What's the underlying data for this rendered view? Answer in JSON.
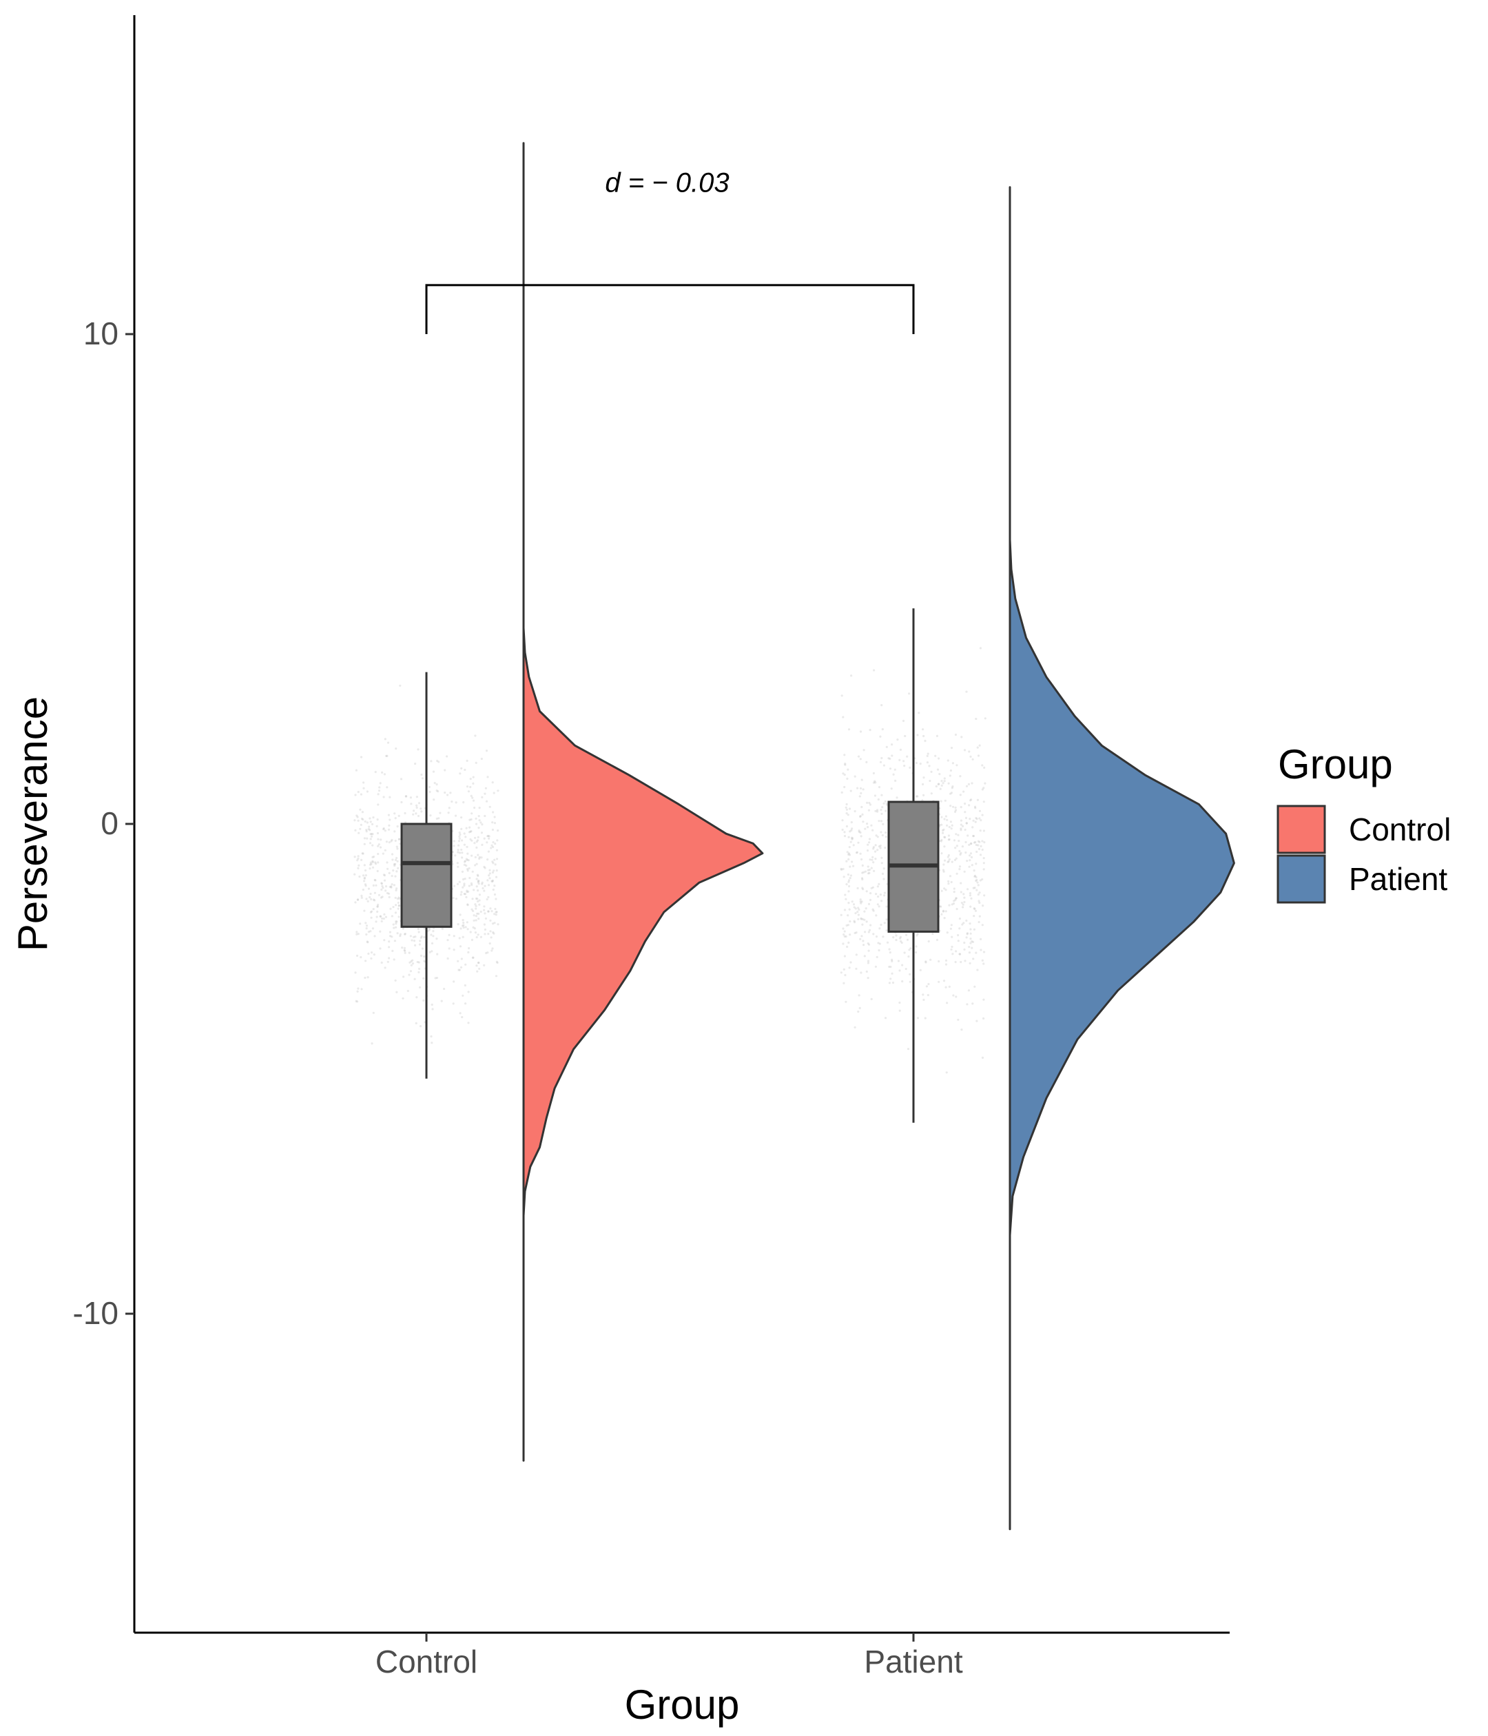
{
  "chart_data": {
    "type": "raincloud",
    "xlabel": "Group",
    "ylabel": "Perseverance",
    "categories": [
      "Control",
      "Patient"
    ],
    "yticks": [
      {
        "value": 10,
        "label": "10"
      },
      {
        "value": 0,
        "label": "0"
      },
      {
        "value": -10,
        "label": "-10"
      }
    ],
    "ylim": [
      -16.5,
      16.5
    ],
    "grid": false,
    "legend": {
      "title": "Group",
      "position": "right",
      "entries": [
        {
          "label": "Control",
          "color": "#F8766D"
        },
        {
          "label": "Patient",
          "color": "#5B84B1"
        }
      ]
    },
    "annotation": {
      "text": "d = − 0.03",
      "bracket_y": 11,
      "bracket_drop_y": 10,
      "label_y": 13.1
    },
    "series": [
      {
        "name": "Control",
        "color": "#F8766D",
        "box": {
          "q1": -2.1,
          "median": -0.8,
          "q3": 0.0,
          "whisker_low": -5.2,
          "whisker_high": 3.1
        },
        "half_violin": {
          "range": [
            -13.0,
            13.9
          ],
          "density": [
            [
              -13.0,
              0.0
            ],
            [
              -8.0,
              0.0
            ],
            [
              -7.5,
              0.01
            ],
            [
              -7.0,
              0.05
            ],
            [
              -6.6,
              0.12
            ],
            [
              -6.0,
              0.17
            ],
            [
              -5.4,
              0.23
            ],
            [
              -4.6,
              0.37
            ],
            [
              -3.8,
              0.6
            ],
            [
              -3.0,
              0.79
            ],
            [
              -2.4,
              0.9
            ],
            [
              -1.8,
              1.04
            ],
            [
              -1.2,
              1.3
            ],
            [
              -0.8,
              1.63
            ],
            [
              -0.6,
              1.77
            ],
            [
              -0.4,
              1.7
            ],
            [
              -0.2,
              1.5
            ],
            [
              0.4,
              1.15
            ],
            [
              1.0,
              0.78
            ],
            [
              1.6,
              0.38
            ],
            [
              2.3,
              0.12
            ],
            [
              3.0,
              0.04
            ],
            [
              3.5,
              0.01
            ],
            [
              4.0,
              0.0
            ],
            [
              13.9,
              0.0
            ]
          ]
        }
      },
      {
        "name": "Patient",
        "color": "#5B84B1",
        "box": {
          "q1": -2.2,
          "median": -0.85,
          "q3": 0.45,
          "whisker_low": -6.1,
          "whisker_high": 4.4
        },
        "half_violin": {
          "range": [
            -14.4,
            13.0
          ],
          "density": [
            [
              -14.4,
              0.0
            ],
            [
              -8.4,
              0.0
            ],
            [
              -7.6,
              0.02
            ],
            [
              -6.8,
              0.1
            ],
            [
              -5.6,
              0.27
            ],
            [
              -4.4,
              0.5
            ],
            [
              -3.4,
              0.8
            ],
            [
              -2.6,
              1.12
            ],
            [
              -2.0,
              1.36
            ],
            [
              -1.4,
              1.56
            ],
            [
              -0.8,
              1.66
            ],
            [
              -0.2,
              1.6
            ],
            [
              0.4,
              1.4
            ],
            [
              1.0,
              1.0
            ],
            [
              1.6,
              0.68
            ],
            [
              2.2,
              0.48
            ],
            [
              3.0,
              0.27
            ],
            [
              3.8,
              0.12
            ],
            [
              4.6,
              0.04
            ],
            [
              5.2,
              0.01
            ],
            [
              5.8,
              0.0
            ],
            [
              13.0,
              0.0
            ]
          ]
        }
      }
    ]
  }
}
